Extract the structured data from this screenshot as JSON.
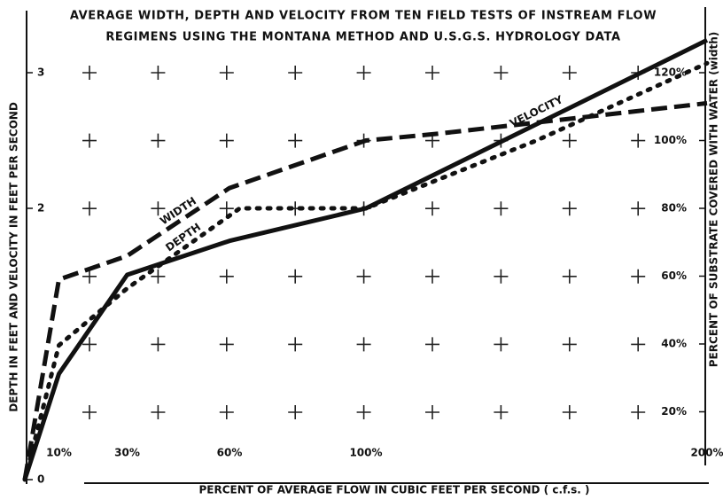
{
  "chart_data": {
    "type": "line",
    "title": [
      "AVERAGE WIDTH, DEPTH AND VELOCITY FROM TEN FIELD TESTS OF INSTREAM FLOW",
      "REGIMENS USING THE MONTANA METHOD AND U.S.G.S. HYDROLOGY DATA"
    ],
    "x_label": "PERCENT OF AVERAGE FLOW IN CUBIC FEET PER SECOND ( c.f.s. )",
    "y_label": "DEPTH IN FEET AND VELOCITY IN FEET PER SECOND",
    "y2_label": "PERCENT OF SUBSTRATE COVERED WITH WATER (width)",
    "xlim": [
      0,
      200
    ],
    "xticks": [
      {
        "value": 10,
        "label": "10%"
      },
      {
        "value": 30,
        "label": "30%"
      },
      {
        "value": 60,
        "label": "60%"
      },
      {
        "value": 100,
        "label": "100%"
      },
      {
        "value": 200,
        "label": "200%"
      }
    ],
    "ylim": [
      0,
      3.4
    ],
    "yticks": [
      0,
      2,
      3
    ],
    "y2lim": [
      0,
      136
    ],
    "y2ticks": [
      {
        "value": 20,
        "label": "20%"
      },
      {
        "value": 40,
        "label": "40%"
      },
      {
        "value": 60,
        "label": "60%"
      },
      {
        "value": 80,
        "label": "80%"
      },
      {
        "value": 100,
        "label": "100%"
      },
      {
        "value": 120,
        "label": "120%"
      }
    ],
    "grid": "crosses",
    "series": [
      {
        "name": "WIDTH",
        "color": "#111111",
        "style": "dashed",
        "axis": "y2",
        "x": [
          0,
          10,
          30,
          60,
          100,
          121,
          200
        ],
        "values": [
          0,
          59,
          66,
          86,
          100,
          102,
          111
        ]
      },
      {
        "name": "DEPTH",
        "color": "#111111",
        "style": "dotted",
        "x": [
          0,
          10,
          30,
          63,
          100,
          150,
          200
        ],
        "values": [
          0,
          0.99,
          1.41,
          2.0,
          2.0,
          2.5,
          3.07
        ]
      },
      {
        "name": "VELOCITY",
        "color": "#111111",
        "style": "solid",
        "x": [
          0,
          10,
          30,
          60,
          100,
          200
        ],
        "values": [
          0,
          0.78,
          1.51,
          1.76,
          2.0,
          3.24
        ]
      }
    ]
  }
}
